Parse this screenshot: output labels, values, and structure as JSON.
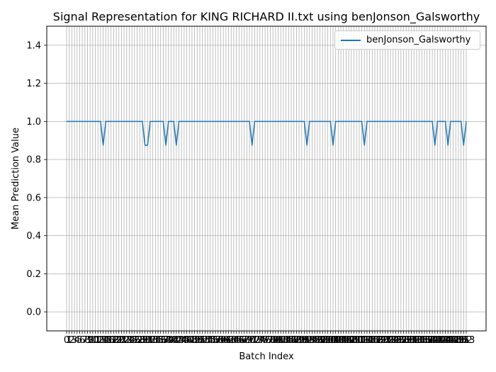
{
  "chart_data": {
    "type": "line",
    "title": "Signal Representation for KING RICHARD II.txt using benJonson_Galsworthy",
    "xlabel": "Batch Index",
    "ylabel": "Mean Prediction Value",
    "ylim": [
      -0.1,
      1.5
    ],
    "y_ticks": [
      "0.0",
      "0.2",
      "0.4",
      "0.6",
      "0.8",
      "1.0",
      "1.2",
      "1.4"
    ],
    "y_tick_values": [
      0.0,
      0.2,
      0.4,
      0.6,
      0.8,
      1.0,
      1.2,
      1.4
    ],
    "grid": true,
    "legend_position": "top-right",
    "x_first_labels": [
      "0",
      "1",
      "2",
      "3",
      "4",
      "5",
      "6",
      "7",
      "8",
      "9",
      "10",
      "11",
      "12",
      "13"
    ],
    "x_last_labels": [
      "150",
      "151",
      "152",
      "153"
    ],
    "series": [
      {
        "name": "benJonson_Galsworthy",
        "color": "#1f77b4",
        "x": [
          0,
          1,
          2,
          3,
          4,
          5,
          6,
          7,
          8,
          9,
          10,
          11,
          12,
          13,
          14,
          15,
          16,
          17,
          18,
          19,
          20,
          21,
          22,
          23,
          24,
          25,
          26,
          27,
          28,
          29,
          30,
          31,
          32,
          33,
          34,
          35,
          36,
          37,
          38,
          39,
          40,
          41,
          42,
          43,
          44,
          45,
          46,
          47,
          48,
          49,
          50,
          51,
          52,
          53,
          54,
          55,
          56,
          57,
          58,
          59,
          60,
          61,
          62,
          63,
          64,
          65,
          66,
          67,
          68,
          69,
          70,
          71,
          72,
          73,
          74,
          75,
          76,
          77,
          78,
          79,
          80,
          81,
          82,
          83,
          84,
          85,
          86,
          87,
          88,
          89,
          90,
          91,
          92,
          93,
          94,
          95,
          96,
          97,
          98,
          99,
          100,
          101,
          102,
          103,
          104,
          105,
          106,
          107,
          108,
          109,
          110,
          111,
          112,
          113,
          114,
          115,
          116,
          117,
          118,
          119,
          120,
          121,
          122,
          123,
          124,
          125,
          126,
          127,
          128,
          129,
          130,
          131,
          132,
          133,
          134,
          135,
          136,
          137,
          138,
          139,
          140,
          141,
          142,
          143,
          144,
          145,
          146,
          147,
          148,
          149,
          150,
          151,
          152,
          153
        ],
        "values": [
          1,
          1,
          1,
          1,
          1,
          1,
          1,
          1,
          1,
          1,
          1,
          1,
          1,
          1,
          0.875,
          1,
          1,
          1,
          1,
          1,
          1,
          1,
          1,
          1,
          1,
          1,
          1,
          1,
          1,
          1,
          0.875,
          0.875,
          1,
          1,
          1,
          1,
          1,
          1,
          0.875,
          1,
          1,
          1,
          0.875,
          1,
          1,
          1,
          1,
          1,
          1,
          1,
          1,
          1,
          1,
          1,
          1,
          1,
          1,
          1,
          1,
          1,
          1,
          1,
          1,
          1,
          1,
          1,
          1,
          1,
          1,
          1,
          1,
          0.875,
          1,
          1,
          1,
          1,
          1,
          1,
          1,
          1,
          1,
          1,
          1,
          1,
          1,
          1,
          1,
          1,
          1,
          1,
          1,
          1,
          0.875,
          1,
          1,
          1,
          1,
          1,
          1,
          1,
          1,
          1,
          0.875,
          1,
          1,
          1,
          1,
          1,
          1,
          1,
          1,
          1,
          1,
          1,
          0.875,
          1,
          1,
          1,
          1,
          1,
          1,
          1,
          1,
          1,
          1,
          1,
          1,
          1,
          1,
          1,
          1,
          1,
          1,
          1,
          1,
          1,
          1,
          1,
          1,
          1,
          1,
          0.875,
          1,
          1,
          1,
          1,
          0.875,
          1,
          1,
          1,
          1,
          1,
          0.875,
          1
        ]
      }
    ]
  }
}
